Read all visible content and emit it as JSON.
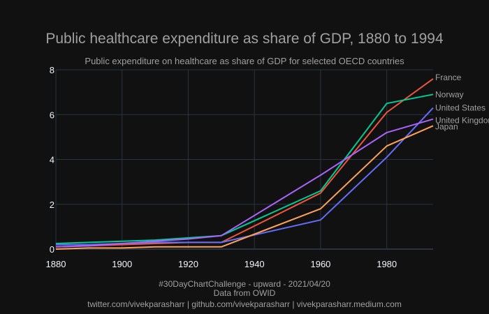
{
  "chart_data": {
    "type": "line",
    "title": "Public healthcare expenditure as share of GDP, 1880 to 1994",
    "subtitle": "Public expenditure on healthcare as share of GDP for selected OECD countries",
    "xlim": [
      1880,
      1994
    ],
    "ylim": [
      0,
      8
    ],
    "x_ticks": [
      1880,
      1900,
      1920,
      1940,
      1960,
      1980
    ],
    "y_ticks": [
      0,
      2,
      4,
      6,
      8
    ],
    "grid": true,
    "legend": "direct labels at line ends",
    "series": [
      {
        "name": "France",
        "color": "#ef553b",
        "x": [
          1880,
          1890,
          1900,
          1910,
          1920,
          1930,
          1960,
          1980,
          1994
        ],
        "y": [
          0.1,
          0.15,
          0.2,
          0.25,
          0.3,
          0.3,
          2.5,
          6.1,
          7.6
        ]
      },
      {
        "name": "Norway",
        "color": "#00cc96",
        "x": [
          1880,
          1890,
          1900,
          1910,
          1920,
          1930,
          1960,
          1980,
          1994
        ],
        "y": [
          0.25,
          0.3,
          0.35,
          0.4,
          0.5,
          0.6,
          2.6,
          6.5,
          6.9
        ]
      },
      {
        "name": "United States",
        "color": "#636efa",
        "x": [
          1880,
          1890,
          1900,
          1910,
          1920,
          1930,
          1960,
          1980,
          1994
        ],
        "y": [
          0.2,
          0.2,
          0.25,
          0.3,
          0.3,
          0.3,
          1.3,
          4.1,
          6.3
        ]
      },
      {
        "name": "United Kingdom",
        "color": "#ab63fa",
        "x": [
          1880,
          1890,
          1900,
          1910,
          1920,
          1930,
          1960,
          1980,
          1994
        ],
        "y": [
          0.1,
          0.15,
          0.25,
          0.35,
          0.45,
          0.6,
          3.3,
          5.2,
          5.8
        ]
      },
      {
        "name": "Japan",
        "color": "#ffa15a",
        "x": [
          1880,
          1890,
          1900,
          1910,
          1920,
          1930,
          1960,
          1980,
          1994
        ],
        "y": [
          0.0,
          0.05,
          0.05,
          0.1,
          0.1,
          0.1,
          1.8,
          4.6,
          5.5
        ]
      }
    ]
  },
  "footer": {
    "line1": "#30DayChartChallenge - upward - 2021/04/20",
    "line2": "Data from OWID",
    "line3": "twitter.com/vivekparasharr | github.com/vivekparasharr | vivekparasharr.medium.com"
  },
  "colors": {
    "background": "#111111",
    "grid": "#283442",
    "title": "#a0a0a0",
    "text": "#f2f5fa"
  }
}
